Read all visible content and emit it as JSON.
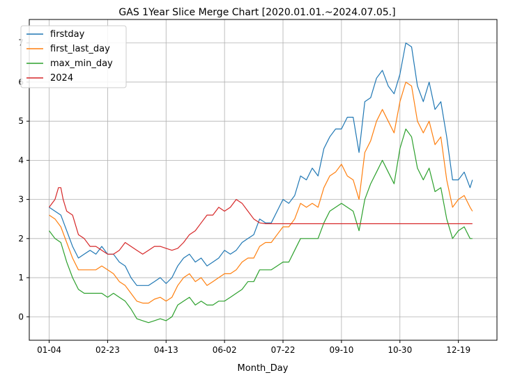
{
  "chart_data": {
    "type": "line",
    "title": "GAS 1Year Slice Merge Chart [2020.01.01.~2024.07.05.]",
    "xlabel": "Month_Day",
    "ylabel": "",
    "ylim": [
      -0.6,
      7.6
    ],
    "yticks": [
      0,
      1,
      2,
      3,
      4,
      5,
      6,
      7
    ],
    "xticks": [
      "01-04",
      "02-23",
      "04-13",
      "06-02",
      "07-22",
      "09-10",
      "10-30",
      "12-19"
    ],
    "xticks_day_index": [
      0,
      50,
      100,
      150,
      200,
      250,
      300,
      350
    ],
    "x_day_range": [
      -17,
      383
    ],
    "grid": true,
    "legend_position": "top-left",
    "series": [
      {
        "name": "firstday",
        "color": "#1f77b4",
        "x": [
          0,
          5,
          10,
          15,
          20,
          25,
          30,
          35,
          40,
          45,
          50,
          55,
          60,
          65,
          70,
          75,
          80,
          85,
          90,
          95,
          100,
          105,
          110,
          115,
          120,
          125,
          130,
          135,
          140,
          145,
          150,
          155,
          160,
          165,
          170,
          175,
          180,
          185,
          190,
          195,
          200,
          205,
          210,
          215,
          220,
          225,
          230,
          235,
          240,
          245,
          250,
          255,
          260,
          265,
          270,
          275,
          280,
          285,
          290,
          295,
          300,
          305,
          310,
          315,
          320,
          325,
          330,
          335,
          340,
          345,
          350,
          355,
          360,
          362
        ],
        "y": [
          2.8,
          2.7,
          2.6,
          2.2,
          1.8,
          1.5,
          1.6,
          1.7,
          1.6,
          1.8,
          1.6,
          1.6,
          1.4,
          1.3,
          1.0,
          0.8,
          0.8,
          0.8,
          0.9,
          1.0,
          0.85,
          1.0,
          1.3,
          1.5,
          1.6,
          1.4,
          1.5,
          1.3,
          1.4,
          1.5,
          1.7,
          1.6,
          1.7,
          1.9,
          2.0,
          2.1,
          2.5,
          2.4,
          2.4,
          2.7,
          3.0,
          2.9,
          3.1,
          3.6,
          3.5,
          3.8,
          3.6,
          4.3,
          4.6,
          4.8,
          4.8,
          5.1,
          5.1,
          4.2,
          5.5,
          5.6,
          6.1,
          6.3,
          5.9,
          5.7,
          6.2,
          7.0,
          6.9,
          5.9,
          5.5,
          6.0,
          5.3,
          5.5,
          4.6,
          3.5,
          3.5,
          3.7,
          3.3,
          3.5
        ]
      },
      {
        "name": "first_last_day",
        "color": "#ff7f0e",
        "x": [
          0,
          5,
          10,
          15,
          20,
          25,
          30,
          35,
          40,
          45,
          50,
          55,
          60,
          65,
          70,
          75,
          80,
          85,
          90,
          95,
          100,
          105,
          110,
          115,
          120,
          125,
          130,
          135,
          140,
          145,
          150,
          155,
          160,
          165,
          170,
          175,
          180,
          185,
          190,
          195,
          200,
          205,
          210,
          215,
          220,
          225,
          230,
          235,
          240,
          245,
          250,
          255,
          260,
          265,
          270,
          275,
          280,
          285,
          290,
          295,
          300,
          305,
          310,
          315,
          320,
          325,
          330,
          335,
          340,
          345,
          350,
          355,
          360,
          362
        ],
        "y": [
          2.6,
          2.5,
          2.3,
          1.9,
          1.5,
          1.2,
          1.2,
          1.2,
          1.2,
          1.3,
          1.2,
          1.1,
          0.9,
          0.8,
          0.6,
          0.4,
          0.35,
          0.35,
          0.45,
          0.5,
          0.4,
          0.5,
          0.8,
          1.0,
          1.1,
          0.9,
          1.0,
          0.8,
          0.9,
          1.0,
          1.1,
          1.1,
          1.2,
          1.4,
          1.5,
          1.5,
          1.8,
          1.9,
          1.9,
          2.1,
          2.3,
          2.3,
          2.5,
          2.9,
          2.8,
          2.9,
          2.8,
          3.3,
          3.6,
          3.7,
          3.9,
          3.6,
          3.5,
          3.0,
          4.2,
          4.5,
          5.0,
          5.3,
          5.0,
          4.7,
          5.5,
          6.0,
          5.9,
          5.0,
          4.7,
          5.0,
          4.4,
          4.6,
          3.5,
          2.8,
          3.0,
          3.1,
          2.8,
          2.7
        ]
      },
      {
        "name": "max_min_day",
        "color": "#2ca02c",
        "x": [
          0,
          5,
          10,
          15,
          20,
          25,
          30,
          35,
          40,
          45,
          50,
          55,
          60,
          65,
          70,
          75,
          80,
          85,
          90,
          95,
          100,
          105,
          110,
          115,
          120,
          125,
          130,
          135,
          140,
          145,
          150,
          155,
          160,
          165,
          170,
          175,
          180,
          185,
          190,
          195,
          200,
          205,
          210,
          215,
          220,
          225,
          230,
          235,
          240,
          245,
          250,
          255,
          260,
          265,
          270,
          275,
          280,
          285,
          290,
          295,
          300,
          305,
          310,
          315,
          320,
          325,
          330,
          335,
          340,
          345,
          350,
          355,
          360,
          362
        ],
        "y": [
          2.2,
          2.0,
          1.9,
          1.4,
          1.0,
          0.7,
          0.6,
          0.6,
          0.6,
          0.6,
          0.5,
          0.6,
          0.5,
          0.4,
          0.2,
          -0.05,
          -0.1,
          -0.15,
          -0.1,
          -0.05,
          -0.1,
          0.0,
          0.3,
          0.4,
          0.5,
          0.3,
          0.4,
          0.3,
          0.3,
          0.4,
          0.4,
          0.5,
          0.6,
          0.7,
          0.9,
          0.9,
          1.2,
          1.2,
          1.2,
          1.3,
          1.4,
          1.4,
          1.7,
          2.0,
          2.0,
          2.0,
          2.0,
          2.4,
          2.7,
          2.8,
          2.9,
          2.8,
          2.7,
          2.2,
          3.0,
          3.4,
          3.7,
          4.0,
          3.7,
          3.4,
          4.3,
          4.8,
          4.6,
          3.8,
          3.5,
          3.8,
          3.2,
          3.3,
          2.5,
          2.0,
          2.2,
          2.3,
          2.0,
          2.0
        ]
      },
      {
        "name": "2024",
        "color": "#d62728",
        "x": [
          0,
          5,
          8,
          10,
          12,
          15,
          20,
          25,
          30,
          35,
          40,
          45,
          50,
          55,
          60,
          65,
          70,
          75,
          80,
          85,
          90,
          95,
          100,
          105,
          110,
          115,
          120,
          125,
          130,
          135,
          140,
          145,
          150,
          155,
          160,
          165,
          170,
          175,
          180,
          185,
          362
        ],
        "y": [
          2.8,
          3.0,
          3.3,
          3.3,
          3.0,
          2.7,
          2.6,
          2.1,
          2.0,
          1.8,
          1.8,
          1.7,
          1.6,
          1.6,
          1.7,
          1.9,
          1.8,
          1.7,
          1.6,
          1.7,
          1.8,
          1.8,
          1.75,
          1.7,
          1.75,
          1.9,
          2.1,
          2.2,
          2.4,
          2.6,
          2.6,
          2.8,
          2.7,
          2.8,
          3.0,
          2.9,
          2.7,
          2.5,
          2.4,
          2.38,
          2.38
        ]
      }
    ]
  }
}
